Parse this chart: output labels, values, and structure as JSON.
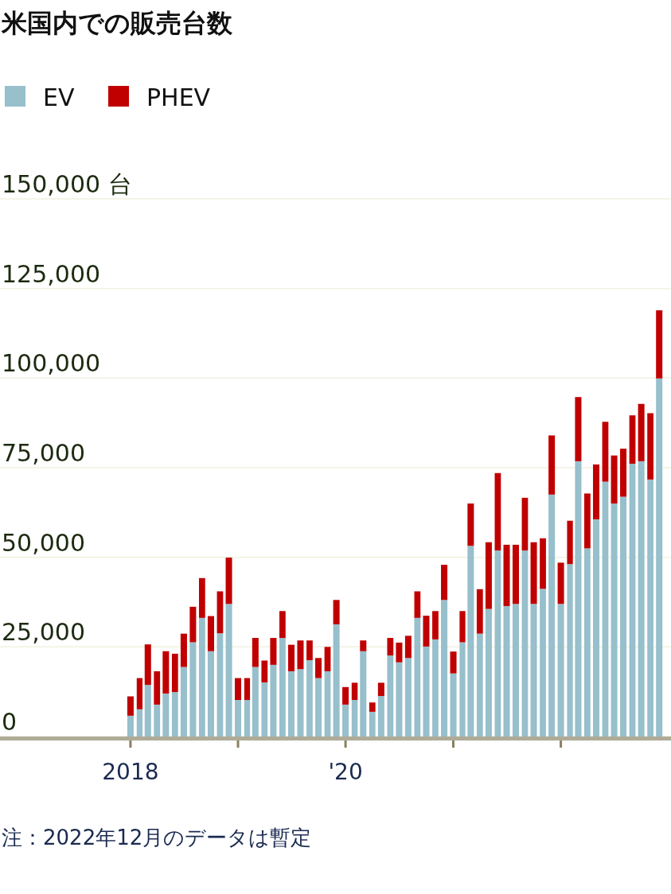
{
  "chart_data": {
    "type": "bar",
    "title": "米国内での販売台数",
    "stacked": true,
    "legend": "top left",
    "grid": "y",
    "x": [
      "2018-01",
      "2018-02",
      "2018-03",
      "2018-04",
      "2018-05",
      "2018-06",
      "2018-07",
      "2018-08",
      "2018-09",
      "2018-10",
      "2018-11",
      "2018-12",
      "2019-01",
      "2019-02",
      "2019-03",
      "2019-04",
      "2019-05",
      "2019-06",
      "2019-07",
      "2019-08",
      "2019-09",
      "2019-10",
      "2019-11",
      "2019-12",
      "2020-01",
      "2020-02",
      "2020-03",
      "2020-04",
      "2020-05",
      "2020-06",
      "2020-07",
      "2020-08",
      "2020-09",
      "2020-10",
      "2020-11",
      "2020-12",
      "2021-01",
      "2021-02",
      "2021-03",
      "2021-04",
      "2021-05",
      "2021-06",
      "2021-07",
      "2021-08",
      "2021-09",
      "2021-10",
      "2021-11",
      "2021-12",
      "2022-01",
      "2022-02",
      "2022-03",
      "2022-04",
      "2022-05",
      "2022-06",
      "2022-07",
      "2022-08",
      "2022-09",
      "2022-10",
      "2022-11",
      "2022-12"
    ],
    "series": [
      {
        "name": "EV",
        "color": "#97bfcc",
        "values": [
          5800,
          7600,
          14400,
          8900,
          12000,
          12400,
          19400,
          26300,
          33100,
          23800,
          28800,
          37000,
          10200,
          10200,
          19400,
          15100,
          20000,
          27500,
          18200,
          18800,
          21300,
          16300,
          18200,
          31300,
          8900,
          10200,
          23800,
          6900,
          11300,
          22600,
          20700,
          21900,
          33100,
          25100,
          27100,
          38100,
          17600,
          26300,
          53200,
          28700,
          35600,
          51900,
          36400,
          37000,
          51900,
          37000,
          41200,
          67500,
          37000,
          48100,
          76800,
          52500,
          60600,
          71100,
          65000,
          66900,
          76100,
          76800,
          71700,
          99900
        ]
      },
      {
        "name": "PHEV",
        "color": "#c00000",
        "values": [
          5400,
          8700,
          11300,
          9300,
          11800,
          10700,
          9300,
          9900,
          11100,
          9800,
          11700,
          12900,
          6100,
          6100,
          8100,
          6100,
          7500,
          7500,
          7400,
          8000,
          5500,
          5600,
          6800,
          6800,
          4900,
          4800,
          3000,
          2600,
          3700,
          4900,
          5500,
          6200,
          7400,
          8600,
          7900,
          9800,
          6100,
          8700,
          11800,
          12400,
          18600,
          21600,
          17100,
          16500,
          14700,
          17200,
          14100,
          16500,
          11500,
          12100,
          17900,
          15300,
          15300,
          16700,
          13400,
          13400,
          13500,
          16000,
          18500,
          19000
        ]
      }
    ],
    "xlim": [
      "2016-10-15",
      "2023-01-10"
    ],
    "xticks": [
      {
        "value": "2018-01",
        "label": "2018"
      },
      {
        "value": "2019-01",
        "label": null
      },
      {
        "value": "2020-01",
        "label": "'20"
      },
      {
        "value": "2021-01",
        "label": null
      },
      {
        "value": "2022-01",
        "label": null
      }
    ],
    "ylim": [
      0,
      150000
    ],
    "yticks": [
      {
        "value": 0,
        "label": "0"
      },
      {
        "value": 25000,
        "label": "25,000"
      },
      {
        "value": 50000,
        "label": "50,000"
      },
      {
        "value": 75000,
        "label": "75,000"
      },
      {
        "value": 100000,
        "label": "100,000"
      },
      {
        "value": 125000,
        "label": "125,000"
      },
      {
        "value": 150000,
        "label": "150,000 台"
      }
    ],
    "annotations": [
      "注：2022年12月のデータは暫定"
    ]
  }
}
